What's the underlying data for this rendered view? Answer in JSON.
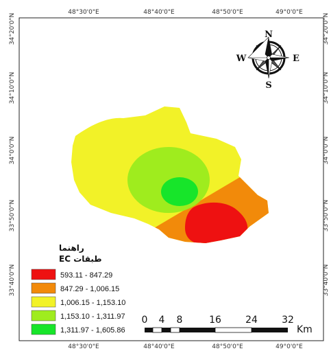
{
  "map": {
    "legend_title": "راهنما",
    "legend_subtitle": "طبقات EC",
    "classes": [
      {
        "label": "593.11 - 847.29",
        "color": "#ee1111"
      },
      {
        "label": "847.29 - 1,006.15",
        "color": "#f28a0a"
      },
      {
        "label": "1,006.15 - 1,153.10",
        "color": "#f2f228"
      },
      {
        "label": "1,153.10 - 1,311.97",
        "color": "#9fec1e"
      },
      {
        "label": "1,311.97 - 1,605.86",
        "color": "#17e52a"
      }
    ],
    "lon_labels_top": [
      "48°30'0\"E",
      "48°40'0\"E",
      "48°50'0\"E",
      "49°0'0\"E"
    ],
    "lon_labels_bottom": [
      "48°30'0\"E",
      "48°40'0\"E",
      "48°50'0\"E",
      "49°0'0\"E"
    ],
    "lat_labels": [
      "34°20'0\"N",
      "34°10'0\"N",
      "34°0'0\"N",
      "33°50'0\"N",
      "33°40'0\"N"
    ],
    "compass": {
      "n": "N",
      "s": "S",
      "e": "E",
      "w": "W",
      "icon": "compass-rose-icon"
    },
    "scale": {
      "ticks": [
        "0",
        "4",
        "8",
        "16",
        "24",
        "32"
      ],
      "unit": "Km"
    }
  }
}
